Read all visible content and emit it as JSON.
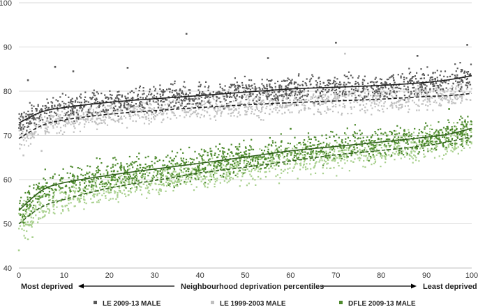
{
  "chart_data": {
    "type": "scatter",
    "title": "",
    "xlabel": "Neighbourhood deprivation percentiles",
    "ylabel": "",
    "xlim": [
      0,
      100
    ],
    "ylim": [
      40,
      100
    ],
    "xticks": [
      "0",
      "10",
      "20",
      "30",
      "40",
      "50",
      "60",
      "70",
      "80",
      "90",
      "100"
    ],
    "yticks": [
      "40",
      "50",
      "60",
      "70",
      "80",
      "90",
      "100"
    ],
    "grid": true,
    "legend": "bottom",
    "annotations": {
      "left": "Most deprived",
      "right": "Least deprived"
    },
    "series": [
      {
        "name": "LE 2009-13 MALE",
        "color": "#595959",
        "marker": "square",
        "spread": 2.0,
        "trend": {
          "style": "solid",
          "x": [
            0,
            5,
            10,
            20,
            30,
            40,
            50,
            60,
            70,
            80,
            90,
            95,
            100
          ],
          "y": [
            72.8,
            75.3,
            76.3,
            77.5,
            78.3,
            79.0,
            79.8,
            80.5,
            80.9,
            81.3,
            82.0,
            82.6,
            83.5
          ]
        }
      },
      {
        "name": "LE 1999-2003 MALE",
        "color": "#c0c0c0",
        "marker": "square",
        "spread": 2.0,
        "trend": {
          "style": "dashed",
          "x": [
            0,
            5,
            10,
            20,
            30,
            40,
            50,
            60,
            70,
            80,
            90,
            95,
            100
          ],
          "y": [
            69.3,
            72.2,
            73.5,
            74.8,
            75.6,
            76.3,
            76.9,
            77.4,
            77.8,
            78.2,
            78.8,
            79.0,
            79.5
          ]
        }
      },
      {
        "name": "DFLE 2009-13 MALE",
        "color": "#4e8a2e",
        "marker": "square",
        "spread": 2.4,
        "trend": {
          "style": "solid",
          "x": [
            0,
            5,
            10,
            20,
            30,
            40,
            50,
            60,
            70,
            80,
            90,
            95,
            100
          ],
          "y": [
            53.0,
            57.5,
            59.3,
            61.0,
            62.4,
            63.7,
            65.1,
            66.5,
            67.5,
            68.5,
            69.6,
            70.3,
            71.6
          ]
        }
      },
      {
        "name": "",
        "color": "#a8d08d",
        "marker": "square",
        "spread": 2.4,
        "trend": {
          "style": "dashed",
          "x": [
            0,
            5,
            10,
            20,
            30,
            40,
            50,
            60,
            70,
            80,
            90,
            95,
            100
          ],
          "y": [
            50.0,
            53.8,
            55.5,
            58.1,
            59.8,
            61.5,
            62.8,
            64.2,
            65.6,
            66.6,
            67.7,
            68.6,
            69.7
          ]
        }
      }
    ],
    "outliers": [
      {
        "series": 0,
        "x": 37,
        "y": 93.0
      },
      {
        "series": 0,
        "x": 70,
        "y": 91.0
      },
      {
        "series": 0,
        "x": 99,
        "y": 90.5
      },
      {
        "series": 0,
        "x": 8,
        "y": 85.5
      },
      {
        "series": 0,
        "x": 24,
        "y": 85.3
      },
      {
        "series": 0,
        "x": 2,
        "y": 82.5
      },
      {
        "series": 0,
        "x": 12,
        "y": 84.5
      },
      {
        "series": 0,
        "x": 55,
        "y": 87.5
      },
      {
        "series": 0,
        "x": 88,
        "y": 88.0
      },
      {
        "series": 1,
        "x": 72,
        "y": 88.5
      },
      {
        "series": 1,
        "x": 1,
        "y": 65.5
      },
      {
        "series": 1,
        "x": 5,
        "y": 66.5
      },
      {
        "series": 3,
        "x": 0,
        "y": 44.0
      },
      {
        "series": 3,
        "x": 2,
        "y": 46.5
      },
      {
        "series": 3,
        "x": 3,
        "y": 47.0
      },
      {
        "series": 2,
        "x": 95,
        "y": 76.0
      },
      {
        "series": 2,
        "x": 60,
        "y": 71.5
      }
    ]
  }
}
